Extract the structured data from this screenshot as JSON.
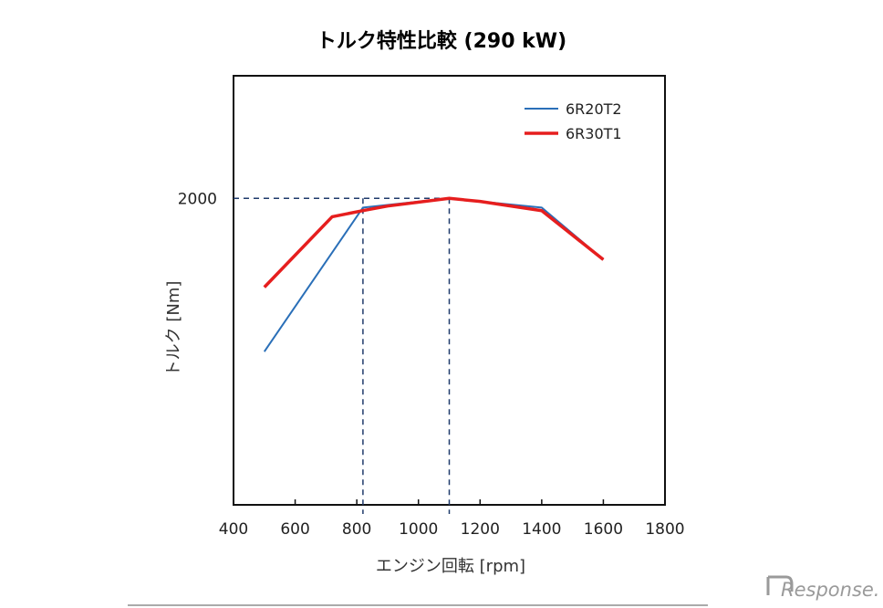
{
  "chart_data": {
    "type": "line",
    "title": "トルク特性比較 (290 kW)",
    "xlabel": "エンジン回転 [rpm]",
    "ylabel": "トルク [Nm]",
    "xlim": [
      400,
      1800
    ],
    "ylim": [
      1000,
      2400
    ],
    "x_ticks": [
      400,
      600,
      800,
      1000,
      1200,
      1400,
      1600,
      1800
    ],
    "y_ticks": [
      2000
    ],
    "grid": false,
    "legend_position": "top-right",
    "series": [
      {
        "name": "6R20T2",
        "color": "#2a6fb8",
        "x": [
          500,
          820,
          1100,
          1400,
          1600
        ],
        "y": [
          1500,
          1970,
          2000,
          1970,
          1800
        ]
      },
      {
        "name": "6R30T1",
        "color": "#e61e1e",
        "x": [
          500,
          720,
          820,
          900,
          1100,
          1200,
          1400,
          1600
        ],
        "y": [
          1710,
          1940,
          1960,
          1975,
          2000,
          1990,
          1960,
          1800
        ]
      }
    ],
    "reference_lines": [
      {
        "axis": "y",
        "value": 2000
      },
      {
        "axis": "x",
        "value": 820
      },
      {
        "axis": "x",
        "value": 1100
      }
    ]
  },
  "watermark": "Response."
}
